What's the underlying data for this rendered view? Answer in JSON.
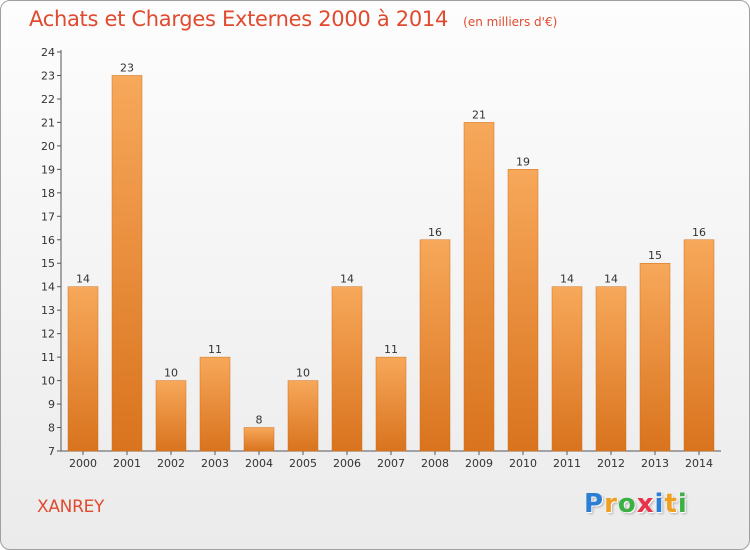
{
  "header": {
    "title": "Achats et Charges Externes 2000 à 2014",
    "subtitle": "(en milliers d'€)"
  },
  "footer": {
    "commune": "XANREY",
    "brand": {
      "letters": [
        "P",
        "r",
        "o",
        "x",
        "i",
        "t",
        "i"
      ],
      "colors": [
        "#2a7fd4",
        "#f0a020",
        "#3cb043",
        "#e8334a",
        "#2a7fd4",
        "#f0a020",
        "#3cb043"
      ]
    }
  },
  "colors": {
    "bar_light": "#f7a85a",
    "bar_dark": "#d9731e",
    "title": "#e04a2f"
  },
  "chart_data": {
    "type": "bar",
    "categories": [
      "2000",
      "2001",
      "2002",
      "2003",
      "2004",
      "2005",
      "2006",
      "2007",
      "2008",
      "2009",
      "2010",
      "2011",
      "2012",
      "2013",
      "2014"
    ],
    "values": [
      14,
      23,
      10,
      11,
      8,
      10,
      14,
      11,
      16,
      21,
      19,
      14,
      14,
      15,
      16
    ],
    "title": "Achats et Charges Externes 2000 à 2014",
    "xlabel": "",
    "ylabel": "",
    "ylim": [
      7,
      24
    ],
    "yticks": [
      7,
      8,
      9,
      10,
      11,
      12,
      13,
      14,
      15,
      16,
      17,
      18,
      19,
      20,
      21,
      22,
      23,
      24
    ],
    "data_labels": true,
    "grid": false,
    "legend": "none"
  }
}
